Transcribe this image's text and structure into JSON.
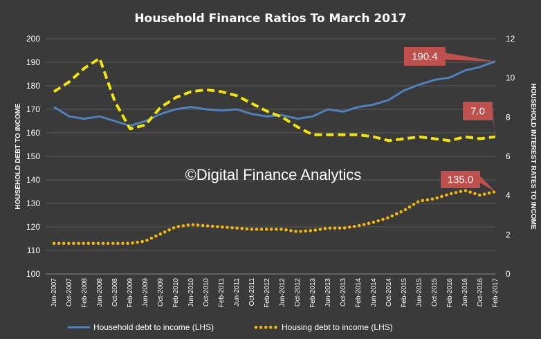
{
  "chart_data": {
    "type": "line",
    "title": "Household Finance Ratios To March 2017",
    "ylabel": "HOUSEHOLD DEBT TO INCOME",
    "y2label": "HOUSEHOLD INTEREST RATES TO INCOME",
    "watermark": "©Digital Finance Analytics",
    "ylim": [
      100,
      200
    ],
    "y2lim": [
      0,
      12
    ],
    "yticks": [
      "100",
      "110",
      "120",
      "130",
      "140",
      "150",
      "160",
      "170",
      "180",
      "190",
      "200"
    ],
    "y2ticks": [
      "0",
      "2",
      "4",
      "6",
      "8",
      "10",
      "12"
    ],
    "grid": true,
    "legend_position": "bottom",
    "x": [
      "Jun-2007",
      "Oct-2007",
      "Feb-2008",
      "Jun-2008",
      "Oct-2008",
      "Feb-2009",
      "Jun-2009",
      "Oct-2009",
      "Feb-2010",
      "Jun-2010",
      "Oct-2010",
      "Feb-2011",
      "Jun-2011",
      "Oct-2011",
      "Feb-2012",
      "Jun-2012",
      "Oct-2012",
      "Feb-2013",
      "Jun-2013",
      "Oct-2013",
      "Feb-2014",
      "Jun-2014",
      "Oct-2014",
      "Feb-2015",
      "Jun-2015",
      "Oct-2015",
      "Feb-2016",
      "Jun-2016",
      "Oct-2016",
      "Feb-2017"
    ],
    "series": [
      {
        "name": "Household debt to income (LHS)",
        "axis": "left",
        "style": "solid",
        "color": "#4f81bd",
        "values": [
          171,
          167,
          166,
          167,
          165,
          163,
          165,
          168,
          170,
          171,
          170,
          169.5,
          170,
          168,
          167,
          167.5,
          166,
          167,
          170,
          169,
          171,
          172,
          174,
          178,
          180.5,
          182.5,
          183.5,
          186.5,
          188,
          190.4
        ]
      },
      {
        "name": "Housing debt to income (LHS)",
        "axis": "left",
        "style": "dotted",
        "color": "#f5b800",
        "values": [
          113,
          113,
          113,
          113,
          113,
          113,
          114,
          117,
          120,
          121,
          120.5,
          120,
          119.5,
          119,
          119,
          119,
          118,
          118.5,
          119.5,
          119.5,
          120.5,
          122,
          124,
          127,
          131,
          132,
          134,
          135.5,
          133.5,
          135.0
        ]
      },
      {
        "name": "",
        "axis": "right",
        "style": "dashed",
        "color": "#f3e600",
        "values": [
          9.3,
          9.8,
          10.5,
          11.0,
          8.8,
          7.4,
          7.6,
          8.5,
          9.0,
          9.3,
          9.4,
          9.3,
          9.1,
          8.7,
          8.3,
          8.0,
          7.5,
          7.1,
          7.1,
          7.1,
          7.1,
          7.0,
          6.8,
          6.9,
          7.0,
          6.9,
          6.8,
          7.0,
          6.9,
          7.0
        ]
      }
    ],
    "callouts": [
      {
        "text": "190.4",
        "series": 0
      },
      {
        "text": "7.0",
        "series": 2
      },
      {
        "text": "135.0",
        "series": 1
      }
    ]
  }
}
